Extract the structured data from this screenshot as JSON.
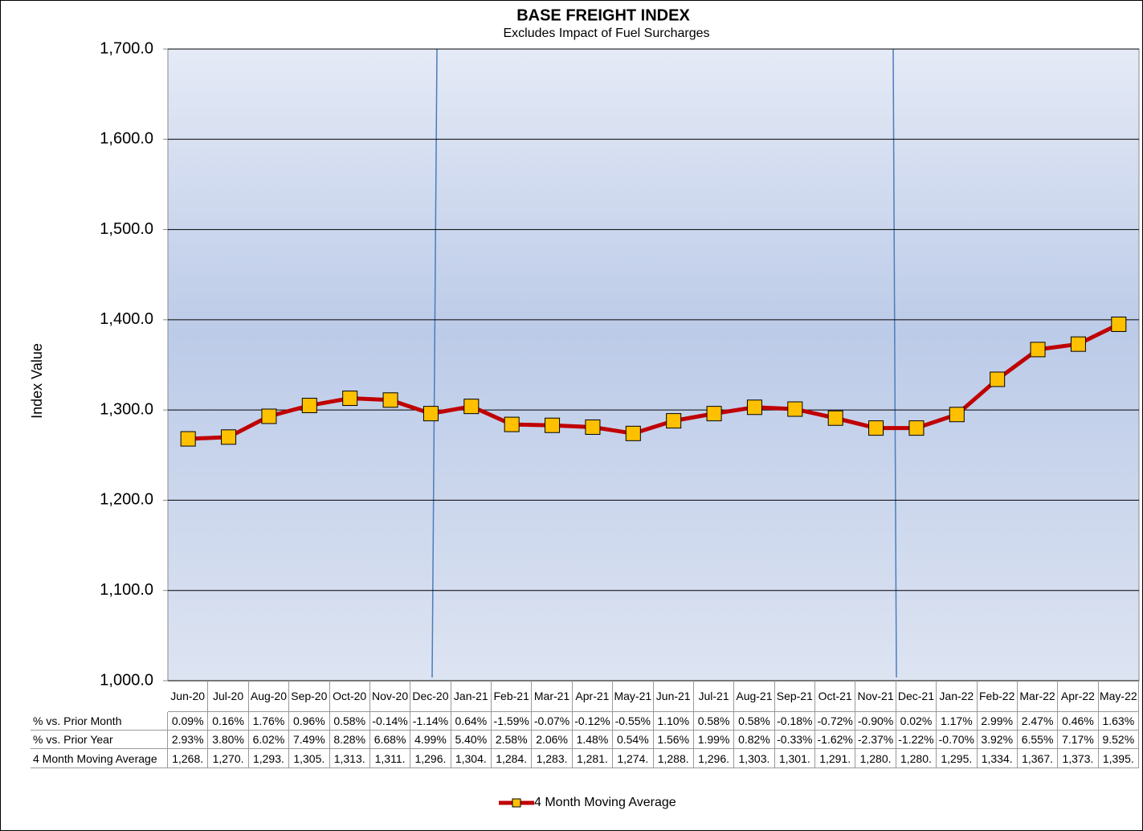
{
  "chart_data": {
    "type": "line",
    "title": "BASE FREIGHT INDEX",
    "subtitle": "Excludes Impact of Fuel Surcharges",
    "y_label": "Index Value",
    "categories": [
      "Jun-20",
      "Jul-20",
      "Aug-20",
      "Sep-20",
      "Oct-20",
      "Nov-20",
      "Dec-20",
      "Jan-21",
      "Feb-21",
      "Mar-21",
      "Apr-21",
      "May-21",
      "Jun-21",
      "Jul-21",
      "Aug-21",
      "Sep-21",
      "Oct-21",
      "Nov-21",
      "Dec-21",
      "Jan-22",
      "Feb-22",
      "Mar-22",
      "Apr-22",
      "May-22"
    ],
    "series": [
      {
        "name": "4 Month Moving Average",
        "color": "#c00000",
        "marker_color": "#ffc000",
        "values": [
          1268,
          1270,
          1293,
          1305,
          1313,
          1311,
          1296,
          1304,
          1284,
          1283,
          1281,
          1274,
          1288,
          1296,
          1303,
          1301,
          1291,
          1280,
          1280,
          1295,
          1334,
          1367,
          1373,
          1395
        ],
        "value_labels": [
          "1,268.",
          "1,270.",
          "1,293.",
          "1,305.",
          "1,313.",
          "1,311.",
          "1,296.",
          "1,304.",
          "1,284.",
          "1,283.",
          "1,281.",
          "1,274.",
          "1,288.",
          "1,296.",
          "1,303.",
          "1,301.",
          "1,291.",
          "1,280.",
          "1,280.",
          "1,295.",
          "1,334.",
          "1,367.",
          "1,373.",
          "1,395."
        ]
      }
    ],
    "table_rows": [
      {
        "name": "% vs. Prior Month",
        "cells": [
          "0.09%",
          "0.16%",
          "1.76%",
          "0.96%",
          "0.58%",
          "-0.14%",
          "-1.14%",
          "0.64%",
          "-1.59%",
          "-0.07%",
          "-0.12%",
          "-0.55%",
          "1.10%",
          "0.58%",
          "0.58%",
          "-0.18%",
          "-0.72%",
          "-0.90%",
          "0.02%",
          "1.17%",
          "2.99%",
          "2.47%",
          "0.46%",
          "1.63%"
        ]
      },
      {
        "name": "% vs. Prior Year",
        "cells": [
          "2.93%",
          "3.80%",
          "6.02%",
          "7.49%",
          "8.28%",
          "6.68%",
          "4.99%",
          "5.40%",
          "2.58%",
          "2.06%",
          "1.48%",
          "0.54%",
          "1.56%",
          "1.99%",
          "0.82%",
          "-0.33%",
          "-1.62%",
          "-2.37%",
          "-1.22%",
          "-0.70%",
          "3.92%",
          "6.55%",
          "7.17%",
          "9.52%"
        ]
      }
    ],
    "ylim": [
      1000,
      1700
    ],
    "yticks": [
      {
        "value": 1000,
        "label": "1,000.0"
      },
      {
        "value": 1100,
        "label": "1,100.0"
      },
      {
        "value": 1200,
        "label": "1,200.0"
      },
      {
        "value": 1300,
        "label": "1,300.0"
      },
      {
        "value": 1400,
        "label": "1,400.0"
      },
      {
        "value": 1500,
        "label": "1,500.0"
      },
      {
        "value": 1600,
        "label": "1,600.0"
      },
      {
        "value": 1700,
        "label": "1,700.0"
      }
    ],
    "grid": true,
    "legend": "bottom"
  }
}
